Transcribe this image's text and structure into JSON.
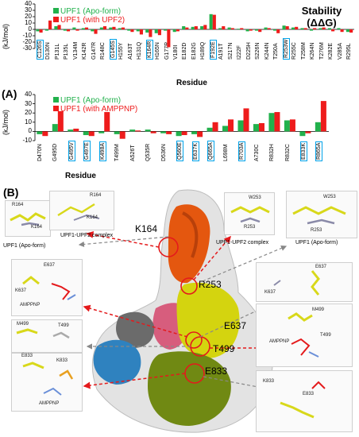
{
  "panel_a": {
    "label": "(A)",
    "stability_line1": "Stability",
    "stability_line2": "(ΔΔG)",
    "unit_top": "(kJ/mol)",
    "unit_bottom": "(kJ/mol)",
    "xlabel": "Residue",
    "colors": {
      "green": "#22b14c",
      "red": "#ee1c1c",
      "highlight": "#00a2e8"
    }
  },
  "panel_b": {
    "label": "(B)",
    "labels": {
      "k164": "K164",
      "r253": "R253",
      "e637": "E637",
      "t499": "T499",
      "e833": "E833",
      "cap_apo_left": "UPF1 (Apo-form)",
      "cap_upf2_left": "UPF1-UPF2 complex",
      "cap_upf2_right": "UPF1-UPF2 complex",
      "cap_apo_right": "UPF1 (Apo-form)",
      "ins_r164_a": "R164",
      "ins_k164_a": "K164",
      "ins_r164_b": "R164",
      "ins_k164_b": "K164",
      "ins_w253_a": "W253",
      "ins_r253_a": "R253",
      "ins_w253_b": "W253",
      "ins_r253_b": "R253",
      "ins_e637_l": "E637",
      "ins_k637_l": "K637",
      "ins_amp_l1": "AMPPNP",
      "ins_m499_l": "M499",
      "ins_t499_l": "T499",
      "ins_e833_l": "E833",
      "ins_k833_l": "K833",
      "ins_amp_l2": "AMPPNP",
      "ins_e637_r": "E637",
      "ins_k637_r": "K637",
      "ins_m499_r": "M499",
      "ins_t499_r": "T499",
      "ins_amp_r": "AMPPNP",
      "ins_k833_r": "K833",
      "ins_e833_r": "E833"
    }
  },
  "chart_data": [
    {
      "type": "bar",
      "ylabel": "(kJ/mol)",
      "xlabel": "Residue",
      "ylim": [
        -30,
        40
      ],
      "yticks": [
        -30,
        -20,
        -10,
        0,
        10,
        20,
        30,
        40
      ],
      "legend": "top-left",
      "categories": [
        "C126S",
        "D130N",
        "P131L",
        "P135L",
        "V134M",
        "K142R",
        "G147R",
        "R148C",
        "G145S",
        "H155Y",
        "A163T",
        "H131Q",
        "K164R",
        "H165N",
        "G177R",
        "V180I",
        "E182D",
        "E182G",
        "H189Q",
        "F192E",
        "A191T",
        "S217N",
        "I222F",
        "D225H",
        "S226N",
        "K244N",
        "T250A",
        "R253W",
        "R255C",
        "T258M",
        "K264N",
        "T276M",
        "K282E",
        "V285A",
        "R295L"
      ],
      "highlighted": [
        "C126S",
        "G145S",
        "K164R",
        "F192E",
        "R253W"
      ],
      "series": [
        {
          "name": "UPF1 (Apo-form)",
          "color": "#22b14c",
          "values": [
            -3,
            -2,
            5,
            -2,
            3,
            2,
            -3,
            3,
            3,
            2,
            -2,
            -3,
            -5,
            -6,
            -2,
            -4,
            5,
            4,
            5,
            24,
            2,
            3,
            1,
            -3,
            -2,
            3,
            -2,
            6,
            3,
            2,
            -2,
            2,
            2,
            2,
            -4
          ]
        },
        {
          "name": "UPF1 (with UPF2)",
          "color": "#ee1c1c",
          "values": [
            -5,
            14,
            7,
            -3,
            -2,
            3,
            -7,
            5,
            4,
            3,
            -4,
            -8,
            -12,
            -9,
            -28,
            -3,
            3,
            5,
            7,
            23,
            5,
            2,
            2,
            -2,
            -4,
            2,
            -6,
            5,
            4,
            2,
            2,
            3,
            -3,
            -4,
            -5
          ]
        }
      ]
    },
    {
      "type": "bar",
      "ylabel": "(kJ/mol)",
      "xlabel": "Residue",
      "ylim": [
        -10,
        40
      ],
      "yticks": [
        -10,
        0,
        10,
        20,
        30,
        40
      ],
      "legend": "top-left",
      "categories": [
        "D470N",
        "G495D",
        "G495V",
        "G497E",
        "K498A",
        "T499M",
        "A526T",
        "Q535R",
        "D536N",
        "Q560E",
        "E637K",
        "Q665A",
        "L698M",
        "R703A",
        "A730C",
        "R832H",
        "R832C",
        "E833K",
        "R865A"
      ],
      "highlighted": [
        "G495V",
        "G497E",
        "K498A",
        "Q560E",
        "E637K",
        "Q665A",
        "R703A",
        "E833K",
        "R865A"
      ],
      "series": [
        {
          "name": "UPF1 (Apo-form)",
          "color": "#22b14c",
          "values": [
            -3,
            8,
            2,
            -4,
            -2,
            -3,
            2,
            2,
            -2,
            -5,
            -3,
            4,
            6,
            12,
            8,
            20,
            12,
            -5,
            10
          ]
        },
        {
          "name": "UPF1 (with AMPPNP)",
          "color": "#ee1c1c",
          "values": [
            -5,
            22,
            3,
            -5,
            21,
            -8,
            1,
            -2,
            -3,
            -4,
            -6,
            10,
            13,
            25,
            9,
            21,
            13,
            -2,
            33
          ]
        }
      ]
    }
  ]
}
